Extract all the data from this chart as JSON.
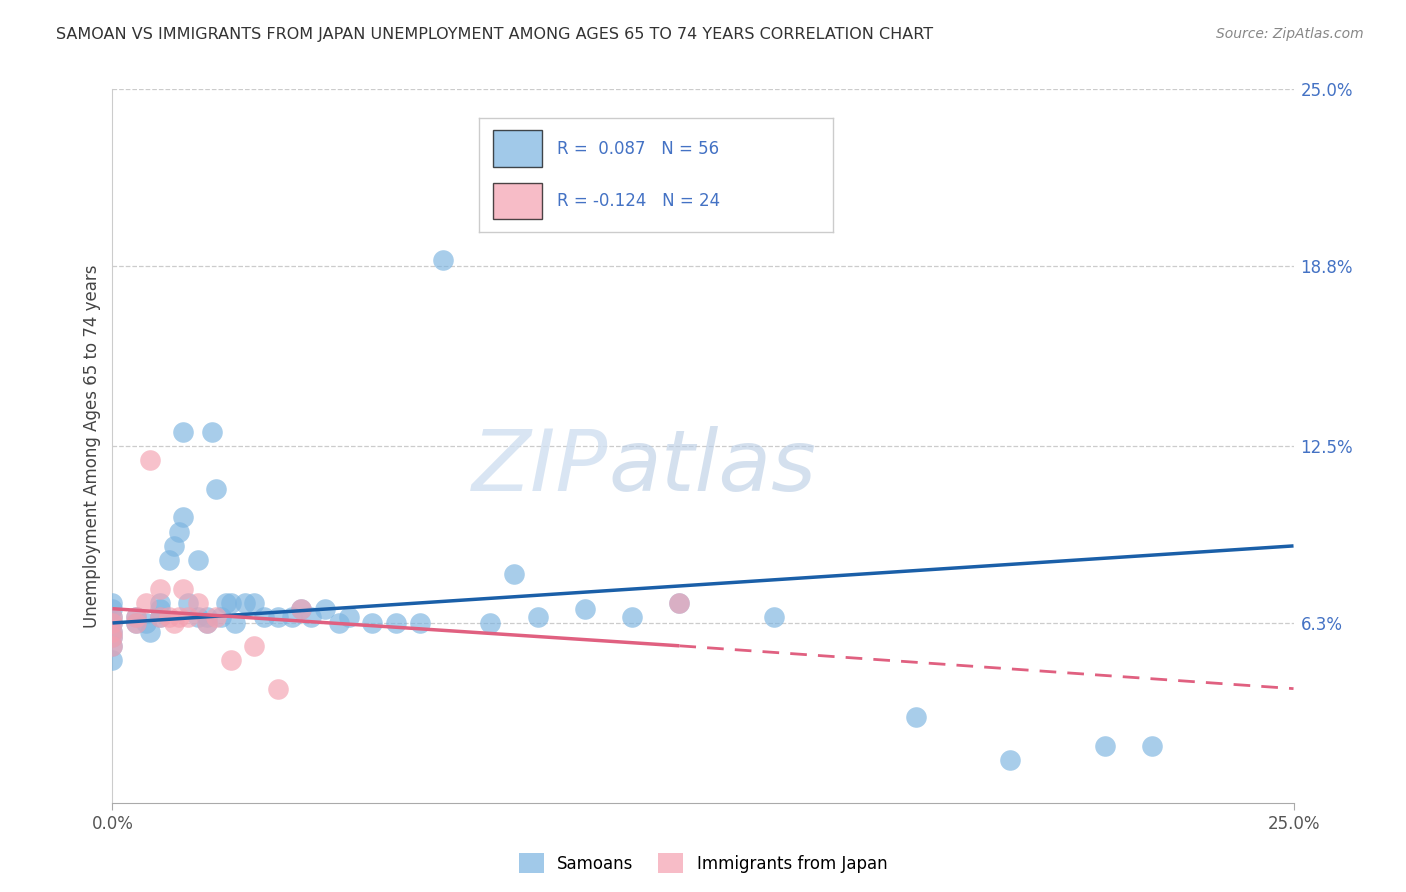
{
  "title": "SAMOAN VS IMMIGRANTS FROM JAPAN UNEMPLOYMENT AMONG AGES 65 TO 74 YEARS CORRELATION CHART",
  "source": "Source: ZipAtlas.com",
  "ylabel": "Unemployment Among Ages 65 to 74 years",
  "x_min": 0.0,
  "x_max": 0.25,
  "y_min": 0.0,
  "y_max": 0.25,
  "y_tick_labels_right": [
    "25.0%",
    "18.8%",
    "12.5%",
    "6.3%"
  ],
  "y_tick_values_right": [
    0.25,
    0.188,
    0.125,
    0.063
  ],
  "watermark_zip": "ZIP",
  "watermark_atlas": "atlas",
  "samoans_color": "#7ab3e0",
  "japan_color": "#f4a0b0",
  "samoans_line_color": "#1a5fa8",
  "japan_line_color": "#e06080",
  "samoans_label": "Samoans",
  "japan_label": "Immigrants from Japan",
  "samoans_R": 0.087,
  "samoans_N": 56,
  "japan_R": -0.124,
  "japan_N": 24,
  "samoans_x": [
    0.0,
    0.0,
    0.0,
    0.0,
    0.0,
    0.0,
    0.0,
    0.0,
    0.005,
    0.005,
    0.007,
    0.008,
    0.01,
    0.01,
    0.01,
    0.012,
    0.013,
    0.014,
    0.015,
    0.015,
    0.016,
    0.018,
    0.018,
    0.02,
    0.02,
    0.021,
    0.022,
    0.023,
    0.024,
    0.025,
    0.026,
    0.028,
    0.03,
    0.032,
    0.035,
    0.038,
    0.04,
    0.042,
    0.045,
    0.048,
    0.05,
    0.055,
    0.06,
    0.065,
    0.07,
    0.08,
    0.085,
    0.09,
    0.1,
    0.11,
    0.12,
    0.14,
    0.17,
    0.19,
    0.21,
    0.22
  ],
  "samoans_y": [
    0.07,
    0.068,
    0.065,
    0.063,
    0.06,
    0.058,
    0.055,
    0.05,
    0.065,
    0.063,
    0.063,
    0.06,
    0.07,
    0.068,
    0.065,
    0.085,
    0.09,
    0.095,
    0.1,
    0.13,
    0.07,
    0.085,
    0.065,
    0.065,
    0.063,
    0.13,
    0.11,
    0.065,
    0.07,
    0.07,
    0.063,
    0.07,
    0.07,
    0.065,
    0.065,
    0.065,
    0.068,
    0.065,
    0.068,
    0.063,
    0.065,
    0.063,
    0.063,
    0.063,
    0.19,
    0.063,
    0.08,
    0.065,
    0.068,
    0.065,
    0.07,
    0.065,
    0.03,
    0.015,
    0.02,
    0.02
  ],
  "japan_x": [
    0.0,
    0.0,
    0.0,
    0.0,
    0.0,
    0.005,
    0.005,
    0.007,
    0.008,
    0.01,
    0.01,
    0.012,
    0.013,
    0.014,
    0.015,
    0.016,
    0.018,
    0.02,
    0.022,
    0.025,
    0.03,
    0.035,
    0.04,
    0.12
  ],
  "japan_y": [
    0.065,
    0.063,
    0.06,
    0.058,
    0.055,
    0.065,
    0.063,
    0.07,
    0.12,
    0.075,
    0.065,
    0.065,
    0.063,
    0.065,
    0.075,
    0.065,
    0.07,
    0.063,
    0.065,
    0.05,
    0.055,
    0.04,
    0.068,
    0.07
  ]
}
